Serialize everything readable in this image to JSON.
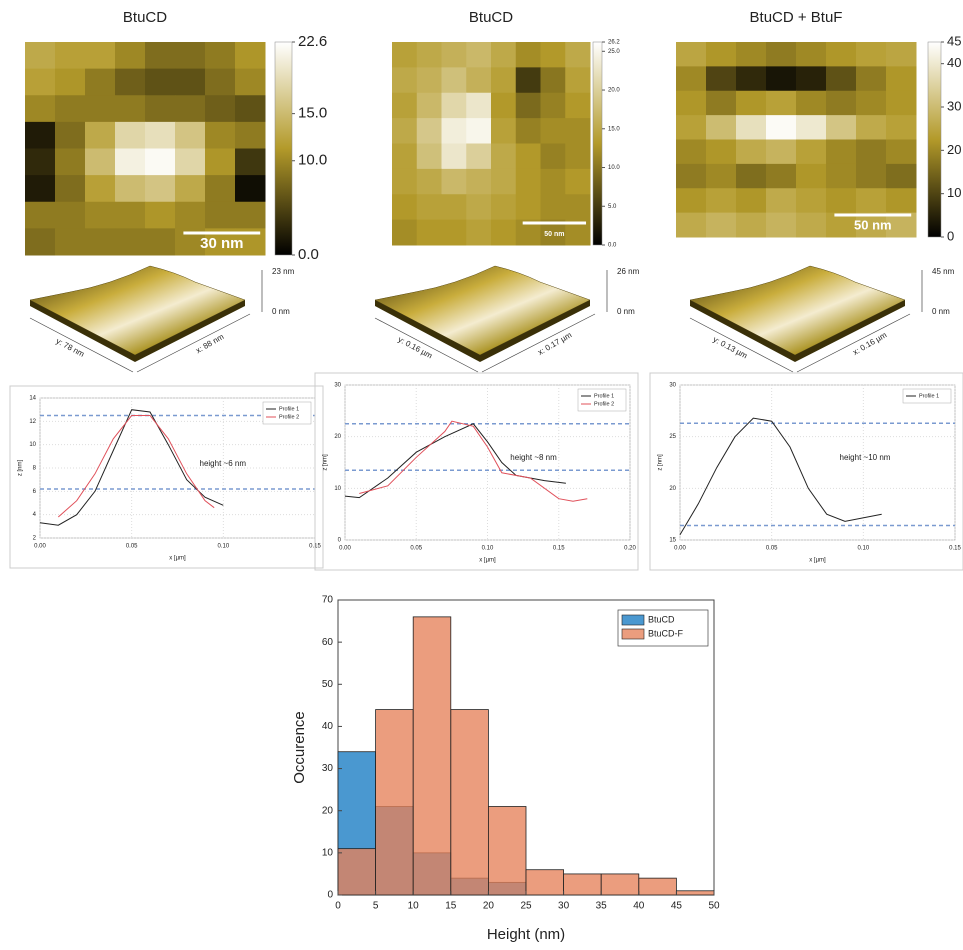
{
  "chart_data": [
    {
      "type": "heatmap",
      "title": "BtuCD",
      "annotation": "30 nm",
      "colormap": [
        "#000000",
        "#b39a2a",
        "#ffffff"
      ],
      "zlim": [
        0,
        22.6
      ],
      "zticks": [
        22.6,
        {
          "value": 15,
          "label": "15.0"
        },
        {
          "value": 10,
          "label": "10.0"
        },
        {
          "value": 0,
          "label": "0.0"
        }
      ],
      "values": [
        [
          13,
          12,
          12,
          10,
          8,
          8,
          9,
          11
        ],
        [
          12,
          11,
          9,
          7,
          6,
          6,
          8,
          10
        ],
        [
          10,
          9,
          9,
          9,
          8,
          8,
          7,
          6
        ],
        [
          2,
          8,
          13,
          18,
          19,
          16,
          10,
          9
        ],
        [
          3,
          9,
          15,
          21,
          22,
          18,
          11,
          4
        ],
        [
          2,
          8,
          12,
          15,
          16,
          13,
          9,
          1
        ],
        [
          9,
          9,
          10,
          10,
          11,
          10,
          9,
          9
        ],
        [
          8,
          9,
          9,
          9,
          9,
          10,
          11,
          11
        ]
      ]
    },
    {
      "type": "heatmap",
      "title": "BtuCD",
      "annotation": "50 nm",
      "colormap": [
        "#000000",
        "#b39a2a",
        "#ffffff"
      ],
      "zlim": [
        0,
        26.2
      ],
      "zticks": [
        26.2,
        {
          "value": 25,
          "label": "25.0"
        },
        {
          "value": 20,
          "label": "20.0"
        },
        {
          "value": 15,
          "label": "15.0"
        },
        {
          "value": 10,
          "label": "10.0"
        },
        {
          "value": 5,
          "label": "5.0"
        },
        {
          "value": 0,
          "label": "0.0"
        }
      ],
      "values": [
        [
          14,
          15,
          16,
          17,
          15,
          12,
          13,
          15
        ],
        [
          15,
          16,
          18,
          16,
          14,
          5,
          10,
          14
        ],
        [
          14,
          17,
          21,
          23,
          13,
          9,
          11,
          13
        ],
        [
          15,
          19,
          24,
          25,
          14,
          11,
          12,
          12
        ],
        [
          14,
          18,
          23,
          20,
          15,
          13,
          11,
          12
        ],
        [
          14,
          15,
          17,
          16,
          15,
          13,
          12,
          13
        ],
        [
          13,
          14,
          14,
          15,
          14,
          13,
          12,
          12
        ],
        [
          12,
          13,
          13,
          14,
          13,
          12,
          11,
          12
        ]
      ]
    },
    {
      "type": "heatmap",
      "title": "BtuCD + BtuF",
      "annotation": "50 nm",
      "colormap": [
        "#000000",
        "#b39a2a",
        "#ffffff"
      ],
      "zlim": [
        0,
        45
      ],
      "zticks": [
        45,
        40,
        30,
        20,
        10,
        0
      ],
      "values": [
        [
          25,
          22,
          20,
          18,
          20,
          22,
          24,
          25
        ],
        [
          20,
          10,
          6,
          3,
          5,
          12,
          18,
          22
        ],
        [
          22,
          18,
          22,
          24,
          20,
          18,
          20,
          22
        ],
        [
          24,
          30,
          38,
          44,
          40,
          32,
          26,
          24
        ],
        [
          20,
          22,
          26,
          28,
          24,
          20,
          18,
          20
        ],
        [
          18,
          20,
          16,
          18,
          22,
          20,
          18,
          16
        ],
        [
          22,
          24,
          22,
          26,
          24,
          22,
          24,
          22
        ],
        [
          26,
          28,
          26,
          28,
          26,
          24,
          26,
          28
        ]
      ]
    },
    {
      "type": "line",
      "xlabel": "x [µm]",
      "ylabel": "z [nm]",
      "annotation": "height ~6 nm",
      "grid": true,
      "legend": "upper right",
      "xlim": [
        0,
        0.15
      ],
      "xticks": [
        {
          "value": 0,
          "label": "0.00"
        },
        {
          "value": 0.05,
          "label": "0.05"
        },
        {
          "value": 0.1,
          "label": "0.10"
        },
        {
          "value": 0.15,
          "label": "0.15"
        }
      ],
      "ylim": [
        2,
        14
      ],
      "yticks": [
        2,
        4,
        6,
        8,
        10,
        12,
        14
      ],
      "reference_lines": [
        12.5,
        6.2
      ],
      "reference_color": "#7a9ad0",
      "series": [
        {
          "name": "Profile 1",
          "color": "#222222",
          "x": [
            0,
            0.01,
            0.02,
            0.03,
            0.04,
            0.05,
            0.06,
            0.07,
            0.08,
            0.09,
            0.1
          ],
          "values": [
            3.3,
            3.1,
            4,
            6,
            9.5,
            13,
            12.8,
            10,
            7,
            5.5,
            4.8
          ]
        },
        {
          "name": "Profile 2",
          "color": "#e0505a",
          "x": [
            0.01,
            0.02,
            0.03,
            0.04,
            0.05,
            0.06,
            0.07,
            0.08,
            0.09,
            0.095
          ],
          "values": [
            3.8,
            5.2,
            7.5,
            10.5,
            12.5,
            12.5,
            10.5,
            7.5,
            5.2,
            4.6
          ]
        }
      ]
    },
    {
      "type": "line",
      "xlabel": "x [µm]",
      "ylabel": "z [nm]",
      "annotation": "height ~8 nm",
      "grid": true,
      "legend": "upper right",
      "xlim": [
        0,
        0.2
      ],
      "xticks": [
        {
          "value": 0,
          "label": "0.00"
        },
        {
          "value": 0.05,
          "label": "0.05"
        },
        {
          "value": 0.1,
          "label": "0.10"
        },
        {
          "value": 0.15,
          "label": "0.15"
        },
        {
          "value": 0.2,
          "label": "0.20"
        }
      ],
      "ylim": [
        0,
        30
      ],
      "yticks": [
        0,
        10,
        20,
        30
      ],
      "reference_lines": [
        22.5,
        13.5
      ],
      "reference_color": "#7a9ad0",
      "series": [
        {
          "name": "Profile 1",
          "color": "#222222",
          "x": [
            0,
            0.01,
            0.03,
            0.05,
            0.07,
            0.09,
            0.1,
            0.11,
            0.12,
            0.14,
            0.155
          ],
          "values": [
            8.5,
            8.2,
            12,
            17,
            20,
            22.5,
            19,
            15,
            12.5,
            11.5,
            11
          ]
        },
        {
          "name": "Profile 2",
          "color": "#e0505a",
          "x": [
            0.01,
            0.03,
            0.05,
            0.07,
            0.075,
            0.09,
            0.1,
            0.11,
            0.13,
            0.15,
            0.16,
            0.17
          ],
          "values": [
            9,
            10.5,
            16,
            21,
            23,
            22,
            18,
            13,
            12,
            8,
            7.5,
            8
          ]
        }
      ]
    },
    {
      "type": "line",
      "xlabel": "x [µm]",
      "ylabel": "z [nm]",
      "annotation": "height ~10 nm",
      "grid": true,
      "legend": "upper right",
      "xlim": [
        0,
        0.15
      ],
      "xticks": [
        {
          "value": 0,
          "label": "0.00"
        },
        {
          "value": 0.05,
          "label": "0.05"
        },
        {
          "value": 0.1,
          "label": "0.10"
        },
        {
          "value": 0.15,
          "label": "0.15"
        }
      ],
      "ylim": [
        15,
        30
      ],
      "yticks": [
        15,
        20,
        25,
        30
      ],
      "reference_lines": [
        26.3,
        16.4
      ],
      "reference_color": "#7a9ad0",
      "series": [
        {
          "name": "Profile 1",
          "color": "#222222",
          "x": [
            0,
            0.01,
            0.02,
            0.03,
            0.04,
            0.05,
            0.06,
            0.07,
            0.08,
            0.09,
            0.11
          ],
          "values": [
            15.5,
            18.5,
            22,
            25,
            26.8,
            26.5,
            24,
            20,
            17.5,
            16.8,
            17.5
          ]
        }
      ]
    },
    {
      "type": "histogram",
      "xlabel": "Height (nm)",
      "ylabel": "Occurence",
      "legend": "upper right",
      "bins": [
        0,
        5,
        10,
        15,
        20,
        25,
        30,
        35,
        40,
        45,
        50
      ],
      "xlim": [
        0,
        50
      ],
      "xticks": [
        0,
        5,
        10,
        15,
        20,
        25,
        30,
        35,
        40,
        45,
        50
      ],
      "ylim": [
        0,
        70
      ],
      "yticks": [
        0,
        10,
        20,
        30,
        40,
        50,
        60,
        70
      ],
      "series": [
        {
          "name": "BtuCD",
          "color": "#4a98d0",
          "alpha": 1,
          "values": [
            34,
            21,
            10,
            4,
            3,
            0,
            0,
            0,
            0,
            0
          ]
        },
        {
          "name": "BtuCD-F",
          "color": "#e5825a",
          "alpha": 0.78,
          "values": [
            11,
            44,
            66,
            44,
            21,
            6,
            5,
            5,
            4,
            1
          ]
        }
      ]
    }
  ],
  "surfaces": [
    {
      "z_max": "23 nm",
      "z_min": "0 nm",
      "y_label": "y: 78 nm",
      "x_label": "x: 88 nm"
    },
    {
      "z_max": "26 nm",
      "z_min": "0 nm",
      "y_label": "y: 0.16 µm",
      "x_label": "x: 0.17 µm"
    },
    {
      "z_max": "45 nm",
      "z_min": "0 nm",
      "y_label": "y: 0.13 µm",
      "x_label": "x: 0.16 µm"
    }
  ]
}
